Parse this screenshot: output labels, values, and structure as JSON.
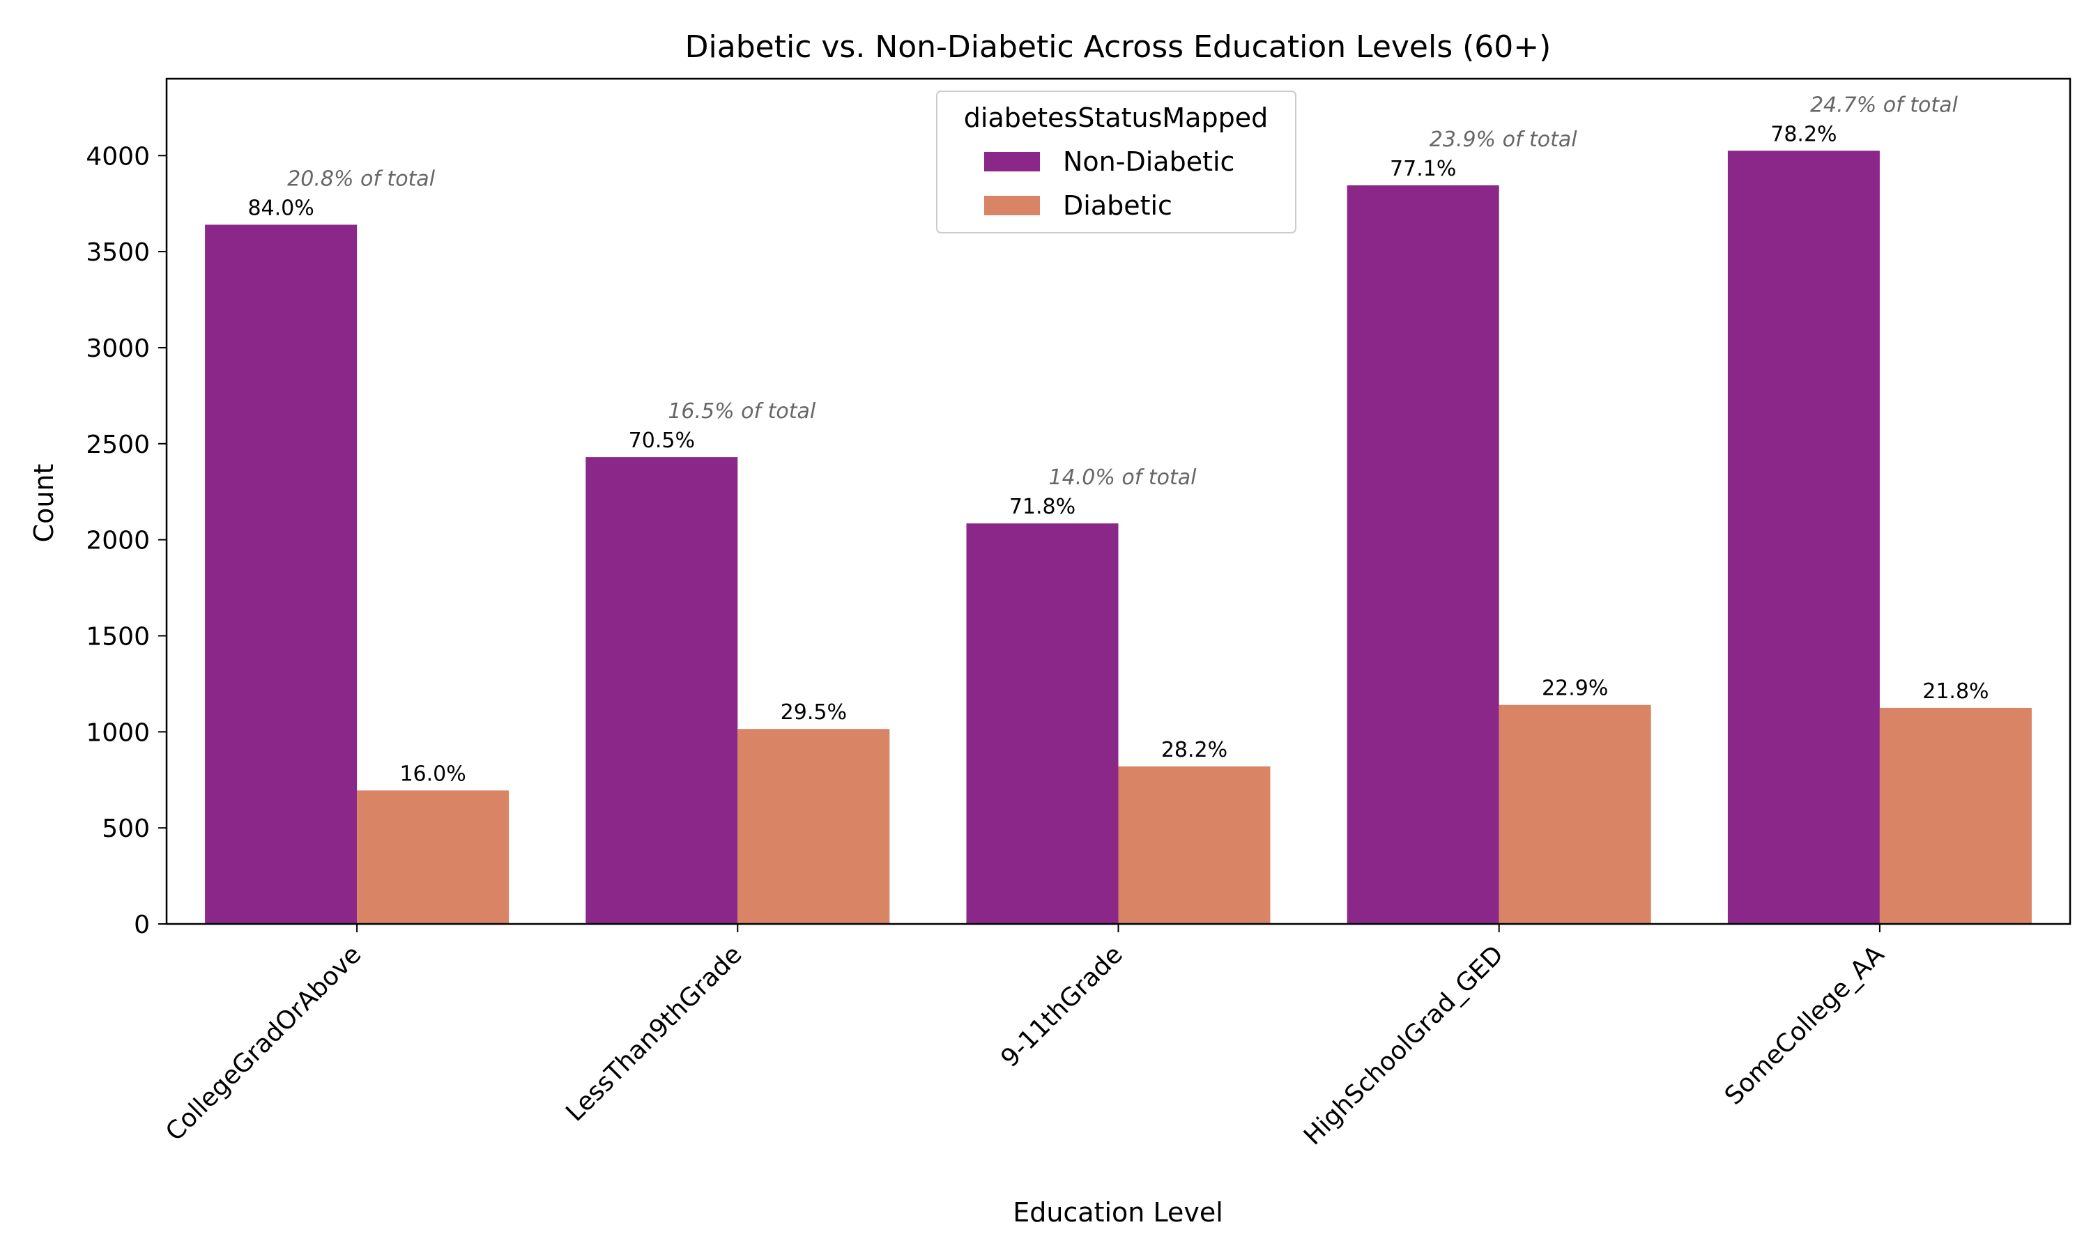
{
  "chart_data": {
    "type": "bar",
    "title": "Diabetic vs. Non-Diabetic Across Education Levels (60+)",
    "xlabel": "Education Level",
    "ylabel": "Count",
    "ylim": [
      0,
      4400
    ],
    "yticks": [
      0,
      500,
      1000,
      1500,
      2000,
      2500,
      3000,
      3500,
      4000
    ],
    "categories": [
      "CollegeGradOrAbove",
      "LessThan9thGrade",
      "9-11thGrade",
      "HighSchoolGrad_GED",
      "SomeCollege_AA"
    ],
    "series": [
      {
        "name": "Non-Diabetic",
        "color": "#8a2788",
        "values": [
          3640,
          2430,
          2085,
          3845,
          4025
        ],
        "labels": [
          "84.0%",
          "70.5%",
          "71.8%",
          "77.1%",
          "78.2%"
        ]
      },
      {
        "name": "Diabetic",
        "color": "#da8466",
        "values": [
          695,
          1015,
          820,
          1140,
          1125
        ],
        "labels": [
          "16.0%",
          "29.5%",
          "28.2%",
          "22.9%",
          "21.8%"
        ]
      }
    ],
    "category_share_labels": [
      "20.8% of total",
      "16.5% of total",
      "14.0% of total",
      "23.9% of total",
      "24.7% of total"
    ],
    "legend": {
      "title": "diabetesStatusMapped",
      "placement": "upper-center"
    },
    "grid": false
  }
}
